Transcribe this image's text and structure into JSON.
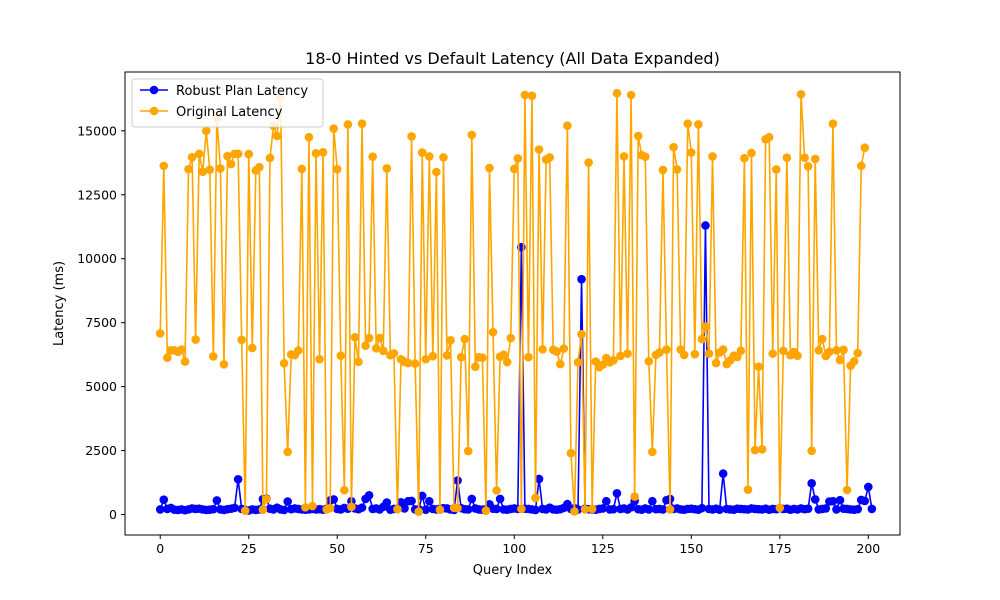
{
  "chart_data": {
    "type": "line",
    "title": "18-0 Hinted vs Default Latency (All Data Expanded)",
    "xlabel": "Query Index",
    "ylabel": "Latency (ms)",
    "xlim": [
      -9.95,
      208.95
    ],
    "ylim": [
      -800,
      17300
    ],
    "xticks": [
      0,
      25,
      50,
      75,
      100,
      125,
      150,
      175,
      200
    ],
    "yticks": [
      0,
      2500,
      5000,
      7500,
      10000,
      12500,
      15000
    ],
    "xtick_labels": [
      "0",
      "25",
      "50",
      "75",
      "100",
      "125",
      "150",
      "175",
      "200"
    ],
    "ytick_labels": [
      "0",
      "2500",
      "5000",
      "7500",
      "10000",
      "12500",
      "15000"
    ],
    "grid": false,
    "legend_position": "top-left",
    "series": [
      {
        "name": "Robust Plan Latency",
        "color": "#0000ff",
        "marker": "circle",
        "values": [
          200,
          580,
          220,
          260,
          190,
          180,
          200,
          170,
          200,
          240,
          220,
          230,
          200,
          180,
          190,
          210,
          550,
          200,
          180,
          210,
          230,
          260,
          1380,
          220,
          180,
          160,
          200,
          180,
          200,
          600,
          620,
          230,
          200,
          270,
          200,
          180,
          510,
          210,
          240,
          220,
          200,
          190,
          200,
          220,
          200,
          210,
          190,
          230,
          550,
          590,
          220,
          200,
          260,
          230,
          520,
          240,
          210,
          270,
          610,
          750,
          220,
          240,
          200,
          300,
          470,
          190,
          220,
          230,
          480,
          240,
          520,
          530,
          200,
          210,
          730,
          190,
          520,
          220,
          200,
          230,
          250,
          240,
          200,
          180,
          1330,
          250,
          210,
          200,
          610,
          240,
          200,
          190,
          210,
          400,
          230,
          220,
          610,
          200,
          190,
          220,
          240,
          220,
          10450,
          230,
          220,
          200,
          180,
          1390,
          220,
          200,
          270,
          200,
          190,
          210,
          260,
          410,
          220,
          250,
          200,
          9200,
          230,
          210,
          200,
          190,
          220,
          240,
          520,
          200,
          210,
          830,
          220,
          240,
          200,
          280,
          530,
          210,
          190,
          240,
          200,
          520,
          210,
          220,
          200,
          560,
          610,
          220,
          240,
          200,
          190,
          220,
          230,
          210,
          190,
          250,
          11300,
          220,
          200,
          230,
          190,
          1600,
          220,
          200,
          190,
          230,
          220,
          210,
          200,
          240,
          220,
          210,
          200,
          230,
          190,
          220,
          210,
          250,
          220,
          230,
          190,
          220,
          200,
          240,
          210,
          230,
          1220,
          590,
          200,
          220,
          240,
          510,
          520,
          200,
          560,
          230,
          220,
          200,
          190,
          210,
          570,
          530,
          1080,
          220
        ]
      },
      {
        "name": "Original Latency",
        "color": "#ffa500",
        "marker": "circle",
        "values": [
          7080,
          13630,
          6130,
          6420,
          6420,
          6360,
          6450,
          5980,
          13500,
          13970,
          6840,
          14100,
          13400,
          15000,
          13480,
          6180,
          15500,
          13530,
          5870,
          14010,
          13700,
          14100,
          14100,
          6830,
          150,
          14090,
          6510,
          13450,
          13580,
          190,
          600,
          13940,
          15200,
          14800,
          16300,
          5910,
          2450,
          6260,
          6230,
          6410,
          13510,
          280,
          14750,
          330,
          14120,
          6070,
          14160,
          200,
          250,
          15090,
          13500,
          6210,
          950,
          15250,
          300,
          6930,
          5970,
          15280,
          6600,
          6900,
          13990,
          6500,
          6900,
          6400,
          13530,
          6230,
          6300,
          210,
          6070,
          5970,
          5920,
          14780,
          5900,
          110,
          14150,
          6070,
          14000,
          6190,
          13390,
          190,
          13960,
          6220,
          6810,
          260,
          250,
          6150,
          6860,
          2480,
          14840,
          5780,
          6150,
          6130,
          150,
          13550,
          7130,
          940,
          6170,
          6250,
          5960,
          6900,
          13510,
          13920,
          220,
          16400,
          6150,
          16370,
          650,
          14270,
          6460,
          13880,
          13960,
          6440,
          6370,
          5880,
          6490,
          15200,
          2400,
          120,
          5950,
          7050,
          200,
          13760,
          220,
          5980,
          5760,
          5860,
          6120,
          5950,
          6030,
          16470,
          6200,
          14000,
          6290,
          16400,
          700,
          14800,
          14050,
          13990,
          5990,
          2450,
          6240,
          6330,
          13470,
          6450,
          200,
          14360,
          13490,
          6450,
          6240,
          15280,
          14150,
          6270,
          15250,
          6860,
          7350,
          6290,
          14000,
          5920,
          6330,
          6450,
          5880,
          6030,
          6210,
          6160,
          6400,
          13930,
          970,
          14130,
          2520,
          5780,
          2550,
          14670,
          14750,
          6290,
          13490,
          260,
          6400,
          13950,
          6230,
          6350,
          6210,
          16430,
          13950,
          13610,
          2490,
          13900,
          6420,
          6860,
          6200,
          6360,
          15280,
          6420,
          6040,
          6440,
          960,
          5820,
          5990,
          6310,
          13630,
          14340
        ]
      }
    ]
  }
}
